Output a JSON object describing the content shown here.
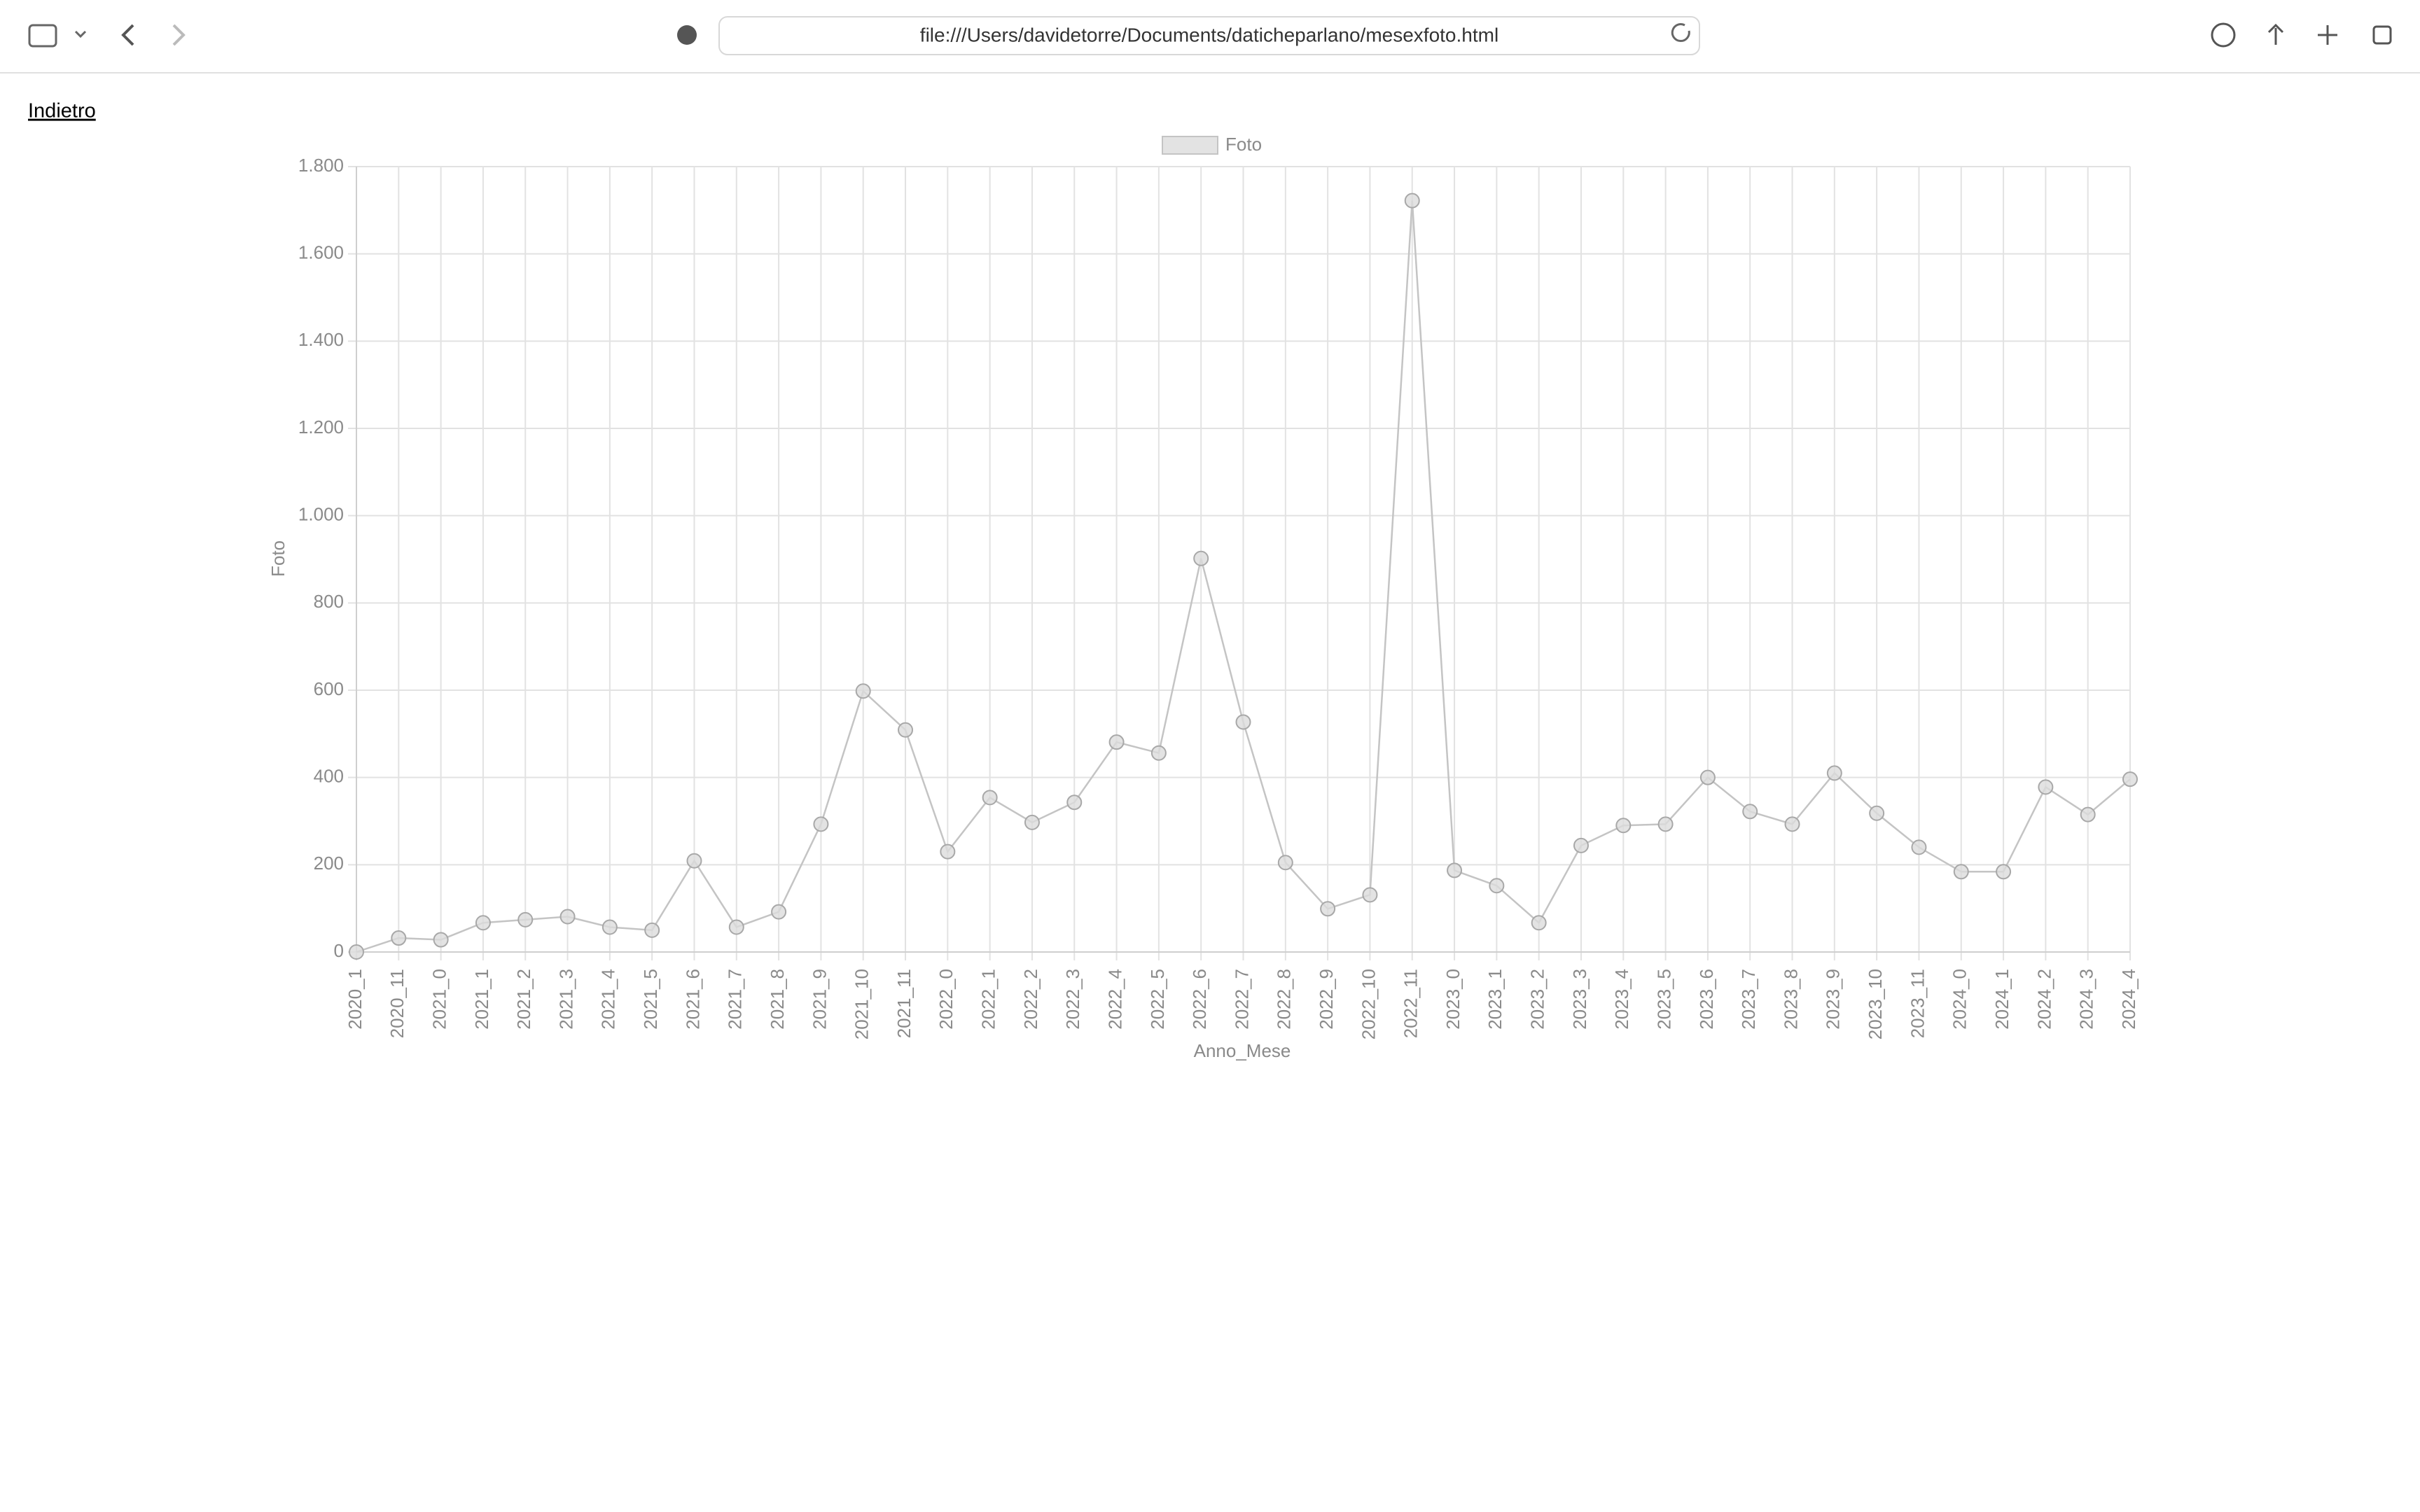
{
  "browser": {
    "url": "file:///Users/davidetorre/Documents/daticheparlano/mesexfoto.html"
  },
  "page": {
    "back_link": "Indietro"
  },
  "chart_data": {
    "type": "line",
    "x_label": "Anno_Mese",
    "y_label": "Foto",
    "categories": [
      "2020_1",
      "2020_11",
      "2021_0",
      "2021_1",
      "2021_2",
      "2021_3",
      "2021_4",
      "2021_5",
      "2021_6",
      "2021_7",
      "2021_8",
      "2021_9",
      "2021_10",
      "2021_11",
      "2022_0",
      "2022_1",
      "2022_2",
      "2022_3",
      "2022_4",
      "2022_5",
      "2022_6",
      "2022_7",
      "2022_8",
      "2022_9",
      "2022_10",
      "2022_11",
      "2023_0",
      "2023_1",
      "2023_2",
      "2023_3",
      "2023_4",
      "2023_5",
      "2023_6",
      "2023_7",
      "2023_8",
      "2023_9",
      "2023_10",
      "2023_11",
      "2024_0",
      "2024_1",
      "2024_2",
      "2024_3",
      "2024_4"
    ],
    "series": [
      {
        "name": "Foto",
        "color": "#c4c4c4",
        "values": [
          0,
          32,
          28,
          67,
          74,
          81,
          57,
          50,
          209,
          57,
          92,
          293,
          598,
          509,
          230,
          354,
          297,
          343,
          481,
          456,
          902,
          527,
          205,
          99,
          131,
          1722,
          187,
          152,
          67,
          244,
          290,
          293,
          400,
          322,
          293,
          410,
          318,
          240,
          184,
          184,
          378,
          315,
          396
        ]
      }
    ],
    "ylim": [
      0,
      1800
    ],
    "yticks": [
      0,
      200,
      400,
      600,
      800,
      {
        "value": 1000,
        "label": "1.000"
      },
      {
        "value": 1200,
        "label": "1.200"
      },
      {
        "value": 1400,
        "label": "1.400"
      },
      {
        "value": 1600,
        "label": "1.600"
      },
      {
        "value": 1800,
        "label": "1.800"
      }
    ],
    "grid": true,
    "legend": "top"
  }
}
